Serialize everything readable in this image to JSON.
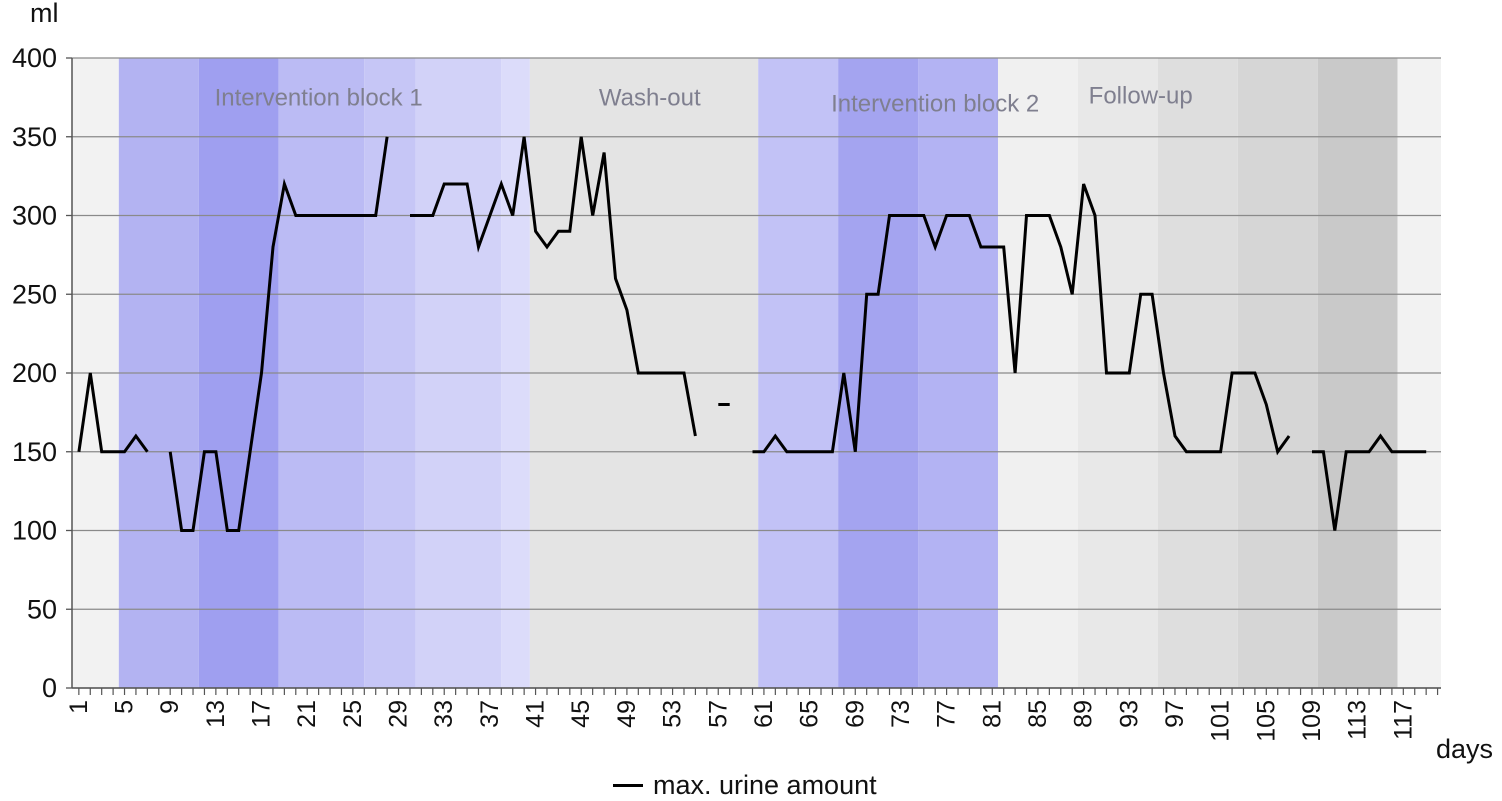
{
  "chart_data": {
    "type": "line",
    "ylabel": "ml",
    "xlabel": "days",
    "ylim": [
      0,
      400
    ],
    "yticks": [
      0,
      50,
      100,
      150,
      200,
      250,
      300,
      350,
      400
    ],
    "xlim": [
      1,
      118
    ],
    "xticks": [
      1,
      5,
      9,
      13,
      17,
      21,
      25,
      29,
      33,
      37,
      41,
      45,
      49,
      53,
      57,
      61,
      65,
      69,
      73,
      77,
      81,
      85,
      89,
      93,
      97,
      101,
      105,
      109,
      113,
      117
    ],
    "grid": "horizontal",
    "legend": "bottom-center",
    "series": [
      {
        "name": "max. urine amount",
        "color": "#000000",
        "segments": [
          [
            [
              1,
              150
            ],
            [
              2,
              200
            ],
            [
              3,
              150
            ],
            [
              4,
              150
            ],
            [
              5,
              150
            ],
            [
              6,
              160
            ],
            [
              7,
              150
            ]
          ],
          [
            [
              9,
              150
            ],
            [
              10,
              100
            ],
            [
              11,
              100
            ],
            [
              12,
              150
            ],
            [
              13,
              150
            ],
            [
              14,
              100
            ],
            [
              15,
              100
            ],
            [
              16,
              150
            ],
            [
              17,
              200
            ],
            [
              18,
              280
            ],
            [
              19,
              320
            ],
            [
              20,
              300
            ],
            [
              21,
              300
            ],
            [
              22,
              300
            ],
            [
              23,
              300
            ],
            [
              24,
              300
            ],
            [
              25,
              300
            ],
            [
              26,
              300
            ],
            [
              27,
              300
            ],
            [
              28,
              350
            ]
          ],
          [
            [
              30,
              300
            ],
            [
              31,
              300
            ],
            [
              32,
              300
            ],
            [
              33,
              320
            ],
            [
              34,
              320
            ],
            [
              35,
              320
            ],
            [
              36,
              280
            ],
            [
              37,
              300
            ],
            [
              38,
              320
            ],
            [
              39,
              300
            ],
            [
              40,
              350
            ],
            [
              41,
              290
            ],
            [
              42,
              280
            ],
            [
              43,
              290
            ],
            [
              44,
              290
            ],
            [
              45,
              350
            ],
            [
              46,
              300
            ],
            [
              47,
              340
            ],
            [
              48,
              260
            ],
            [
              49,
              240
            ],
            [
              50,
              200
            ],
            [
              51,
              200
            ],
            [
              52,
              200
            ],
            [
              53,
              200
            ],
            [
              54,
              200
            ],
            [
              55,
              160
            ]
          ],
          [
            [
              57,
              180
            ],
            [
              58,
              180
            ]
          ],
          [
            [
              60,
              150
            ],
            [
              61,
              150
            ],
            [
              62,
              160
            ],
            [
              63,
              150
            ],
            [
              64,
              150
            ],
            [
              65,
              150
            ],
            [
              66,
              150
            ],
            [
              67,
              150
            ],
            [
              68,
              200
            ],
            [
              69,
              150
            ],
            [
              70,
              250
            ],
            [
              71,
              250
            ],
            [
              72,
              300
            ],
            [
              73,
              300
            ],
            [
              74,
              300
            ],
            [
              75,
              300
            ],
            [
              76,
              280
            ],
            [
              77,
              300
            ],
            [
              78,
              300
            ],
            [
              79,
              300
            ],
            [
              80,
              280
            ],
            [
              81,
              280
            ],
            [
              82,
              280
            ],
            [
              83,
              200
            ],
            [
              84,
              300
            ],
            [
              85,
              300
            ],
            [
              86,
              300
            ],
            [
              87,
              280
            ],
            [
              88,
              250
            ],
            [
              89,
              320
            ],
            [
              90,
              300
            ],
            [
              91,
              200
            ],
            [
              92,
              200
            ],
            [
              93,
              200
            ],
            [
              94,
              250
            ],
            [
              95,
              250
            ],
            [
              96,
              200
            ],
            [
              97,
              160
            ],
            [
              98,
              150
            ],
            [
              99,
              150
            ],
            [
              100,
              150
            ],
            [
              101,
              150
            ],
            [
              102,
              200
            ],
            [
              103,
              200
            ],
            [
              104,
              200
            ],
            [
              105,
              180
            ],
            [
              106,
              150
            ],
            [
              107,
              160
            ]
          ],
          [
            [
              109,
              150
            ],
            [
              110,
              150
            ],
            [
              111,
              100
            ],
            [
              112,
              150
            ],
            [
              113,
              150
            ],
            [
              114,
              150
            ],
            [
              115,
              160
            ],
            [
              116,
              150
            ],
            [
              117,
              150
            ],
            [
              118,
              150
            ],
            [
              119,
              150
            ]
          ]
        ]
      }
    ],
    "background_bands": [
      {
        "from": 0.4,
        "to": 4.5,
        "color": "#f2f2f2"
      },
      {
        "from": 4.5,
        "to": 11.5,
        "color": "#b3b3f2"
      },
      {
        "from": 11.5,
        "to": 18.5,
        "color": "#9f9ff0"
      },
      {
        "from": 18.5,
        "to": 26,
        "color": "#bbbbf4"
      },
      {
        "from": 26,
        "to": 30.5,
        "color": "#c6c6f6"
      },
      {
        "from": 30.5,
        "to": 38,
        "color": "#d2d2f8"
      },
      {
        "from": 38,
        "to": 40.5,
        "color": "#dcdcfa"
      },
      {
        "from": 40.5,
        "to": 60.5,
        "color": "#e4e4e4"
      },
      {
        "from": 60.5,
        "to": 67.5,
        "color": "#c2c2f6"
      },
      {
        "from": 67.5,
        "to": 74.5,
        "color": "#a4a4f0"
      },
      {
        "from": 74.5,
        "to": 81.5,
        "color": "#b3b3f3"
      },
      {
        "from": 81.5,
        "to": 88.5,
        "color": "#f0f0f0"
      },
      {
        "from": 88.5,
        "to": 95.5,
        "color": "#e8e8e8"
      },
      {
        "from": 95.5,
        "to": 102.5,
        "color": "#dedede"
      },
      {
        "from": 102.5,
        "to": 109.5,
        "color": "#d6d6d6"
      },
      {
        "from": 109.5,
        "to": 116.5,
        "color": "#c9c9c9"
      },
      {
        "from": 116.5,
        "to": 120.3,
        "color": "#f2f2f2"
      }
    ],
    "annotations": [
      {
        "text": "Intervention block 1",
        "x": 22,
        "y": 370
      },
      {
        "text": "Wash-out",
        "x": 51,
        "y": 370
      },
      {
        "text": "Intervention block 2",
        "x": 76,
        "y": 366
      },
      {
        "text": "Follow-up",
        "x": 94,
        "y": 371
      }
    ]
  }
}
